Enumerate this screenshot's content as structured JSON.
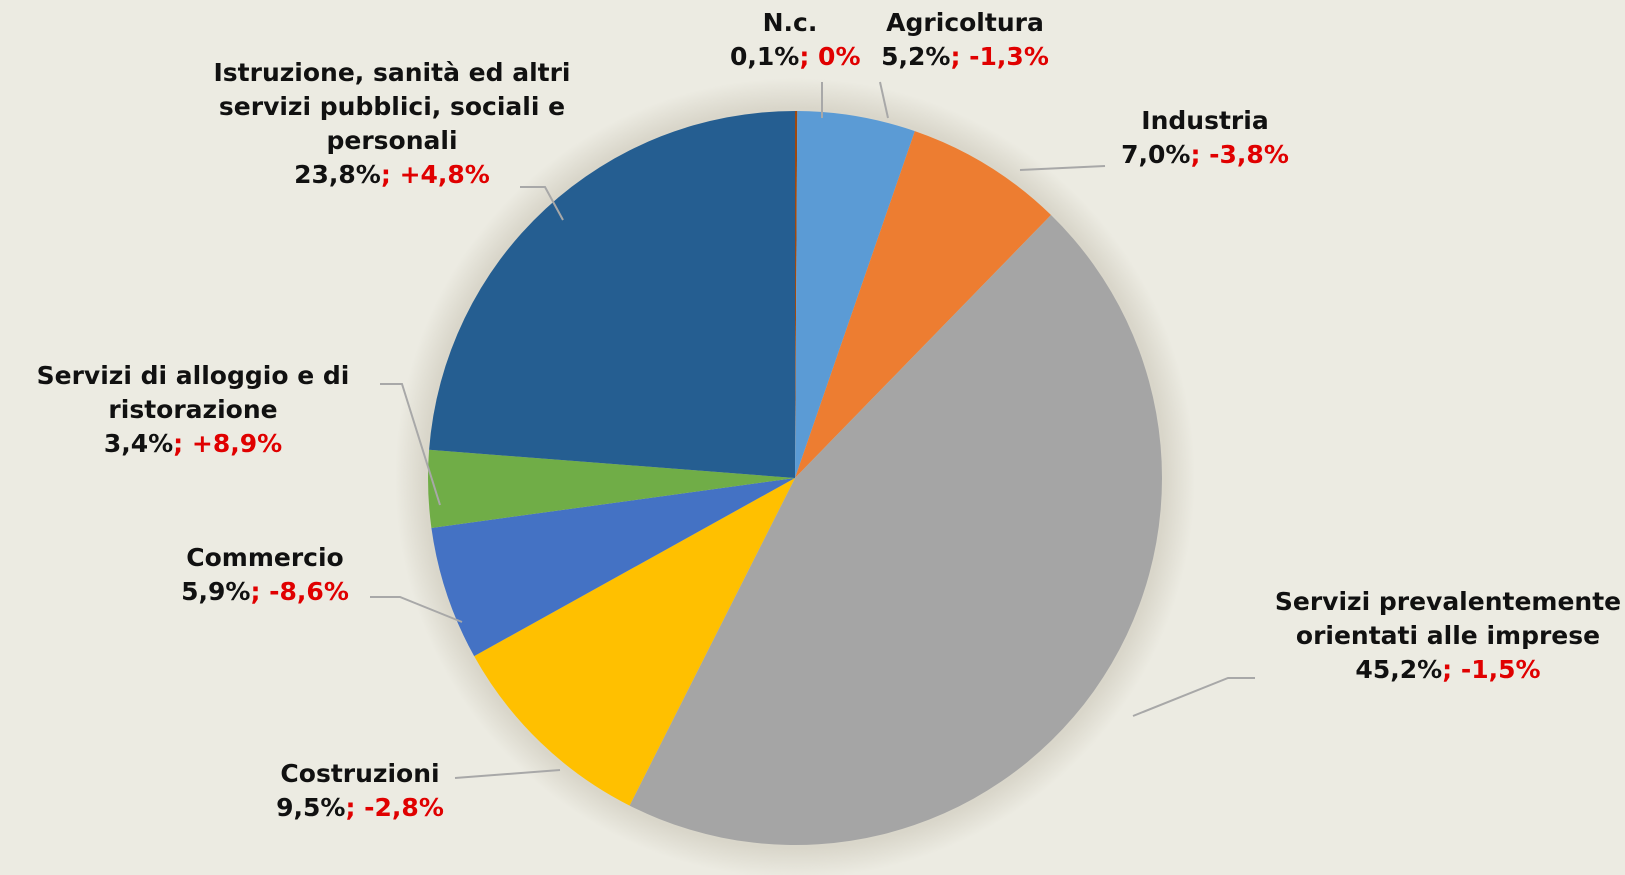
{
  "chart_data": {
    "type": "pie",
    "categories": [
      "N.c.",
      "Agricoltura",
      "Industria",
      "Servizi prevalentemente orientati alle imprese",
      "Costruzioni",
      "Commercio",
      "Servizi di alloggio e di ristorazione",
      "Istruzione, sanità ed altri servizi pubblici, sociali e personali"
    ],
    "values": [
      0.1,
      5.2,
      7.0,
      45.2,
      9.5,
      5.9,
      3.4,
      23.8
    ],
    "value_labels": [
      "0,1%",
      "5,2%",
      "7,0%",
      "45,2%",
      "9,5%",
      "5,9%",
      "3,4%",
      "23,8%"
    ],
    "label_separator": "; ",
    "changes": [
      0,
      -1.3,
      -3.8,
      -1.5,
      -2.8,
      -8.6,
      8.9,
      4.8
    ],
    "change_labels": [
      "0%",
      "-1,3%",
      "-3,8%",
      "-1,5%",
      "-2,8%",
      "-8,6%",
      "+8,9%",
      "+4,8%"
    ],
    "colors": [
      "#9e480e",
      "#5b9bd5",
      "#ed7d31",
      "#a5a5a5",
      "#ffc000",
      "#4472c4",
      "#70ad47",
      "#255e91"
    ]
  }
}
